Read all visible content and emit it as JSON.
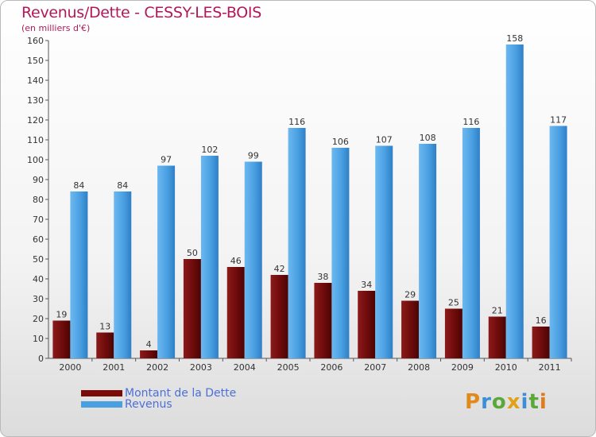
{
  "title": "Revenus/Dette - CESSY-LES-BOIS",
  "unit_label": "(en milliers d'€)",
  "colors": {
    "dette": "#7a0a0a",
    "revenus": "#4a9fe0",
    "title": "#b0185a",
    "legend_text": "#4c6fd8"
  },
  "legend": {
    "dette_label": "Montant de la Dette",
    "revenus_label": "Revenus"
  },
  "logo": {
    "text": "Proxiti"
  },
  "chart_data": {
    "type": "bar",
    "title": "Revenus/Dette - CESSY-LES-BOIS",
    "ylabel": "(en milliers d'€)",
    "categories": [
      "2000",
      "2001",
      "2002",
      "2003",
      "2004",
      "2005",
      "2006",
      "2007",
      "2008",
      "2009",
      "2010",
      "2011"
    ],
    "series": [
      {
        "name": "Montant de la Dette",
        "values": [
          19,
          13,
          4,
          50,
          46,
          42,
          38,
          34,
          29,
          25,
          21,
          16
        ]
      },
      {
        "name": "Revenus",
        "values": [
          84,
          84,
          97,
          102,
          99,
          116,
          106,
          107,
          108,
          116,
          158,
          117
        ]
      }
    ],
    "ylim": [
      0,
      160
    ],
    "yticks": [
      0,
      10,
      20,
      30,
      40,
      50,
      60,
      70,
      80,
      90,
      100,
      110,
      120,
      130,
      140,
      150,
      160
    ],
    "grid": false,
    "legend_position": "bottom-left"
  }
}
